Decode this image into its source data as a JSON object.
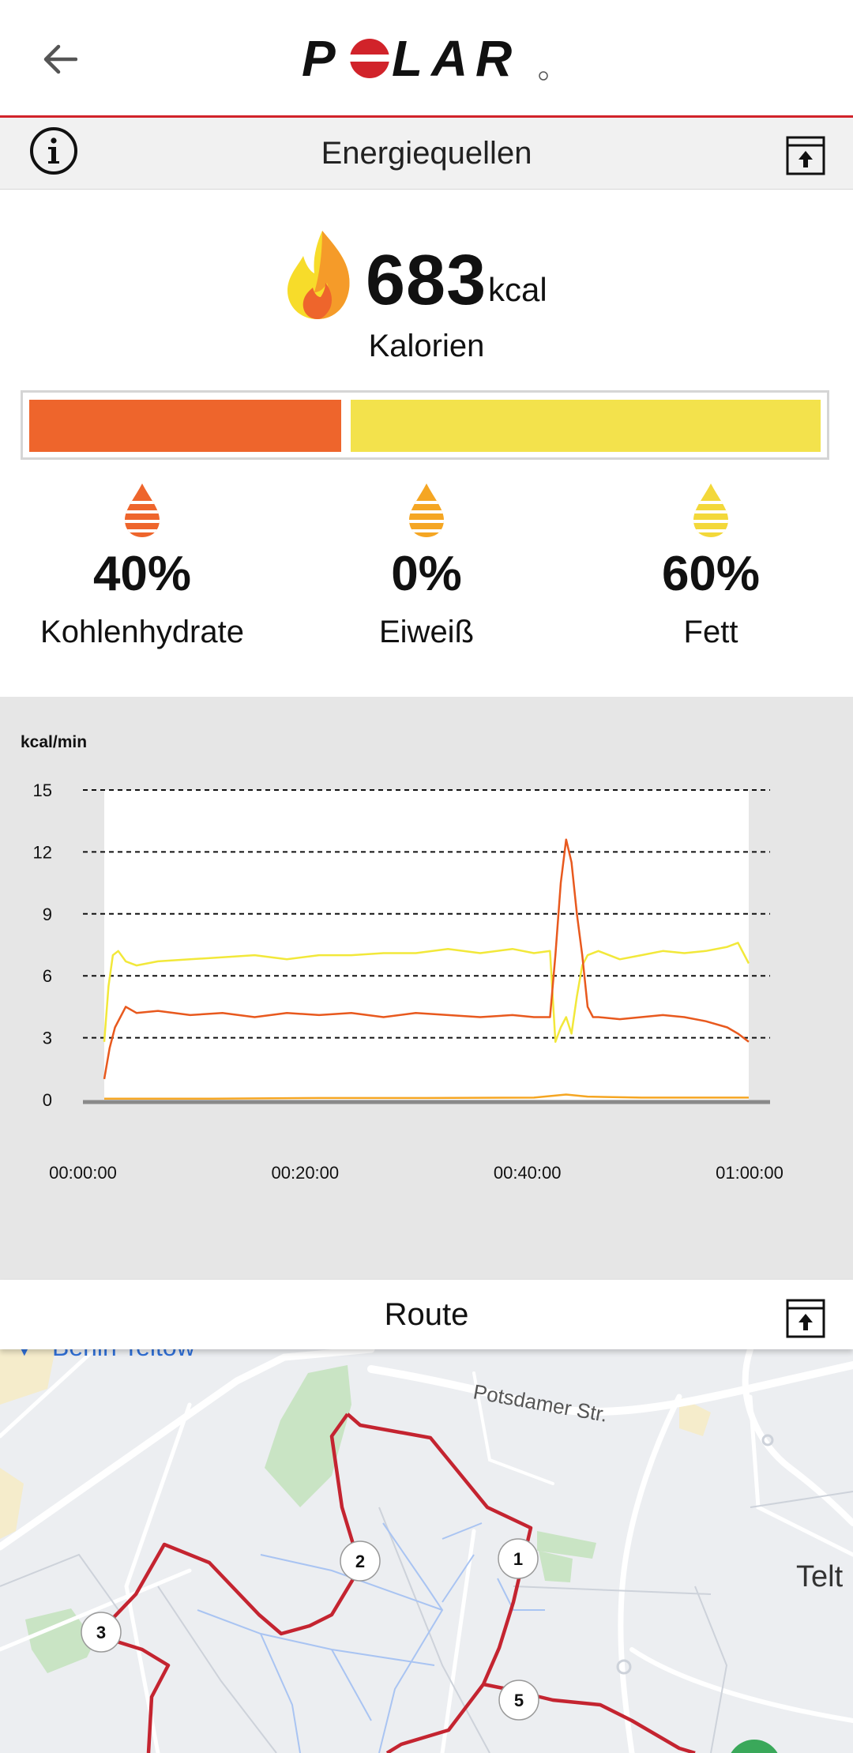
{
  "header": {
    "brand": "POLAR"
  },
  "section": {
    "title": "Energiequellen"
  },
  "calories": {
    "value": "683",
    "unit": "kcal",
    "label": "Kalorien"
  },
  "energy_bar": {
    "carbs_fraction": 0.4,
    "fat_fraction": 0.6,
    "carbs_color": "#ee652c",
    "fat_color": "#f3e24c"
  },
  "sources": [
    {
      "pct": "40%",
      "label": "Kohlenhydrate",
      "color": "#ee652c"
    },
    {
      "pct": "0%",
      "label": "Eiweiß",
      "color": "#f5a623"
    },
    {
      "pct": "60%",
      "label": "Fett",
      "color": "#f3d83a"
    }
  ],
  "chart_data": {
    "type": "line",
    "ylabel": "kcal/min",
    "ylim": [
      0,
      15
    ],
    "yticks": [
      "0",
      "3",
      "6",
      "9",
      "12",
      "15"
    ],
    "xticks": [
      "00:00:00",
      "00:20:00",
      "00:40:00",
      "01:00:00"
    ],
    "xlim_min": [
      0,
      60
    ],
    "grid": "dashed horizontal",
    "series": [
      {
        "color": "#f2e83a",
        "x": [
          0,
          0.4,
          0.8,
          1.3,
          2,
          3,
          5,
          8,
          11,
          14,
          17,
          20,
          23,
          26,
          29,
          32,
          35,
          38,
          40,
          41.5,
          42,
          42.5,
          43,
          43.5,
          44,
          44.5,
          45,
          46,
          48,
          50,
          52,
          54,
          56,
          58,
          59,
          60
        ],
        "values": [
          2.8,
          5.5,
          7.0,
          7.2,
          6.7,
          6.5,
          6.7,
          6.8,
          6.9,
          7.0,
          6.8,
          7.0,
          7.0,
          7.1,
          7.1,
          7.3,
          7.1,
          7.3,
          7.1,
          7.2,
          2.8,
          3.5,
          4.0,
          3.2,
          5.0,
          6.5,
          7.0,
          7.2,
          6.8,
          7.0,
          7.2,
          7.1,
          7.2,
          7.4,
          7.6,
          6.6
        ]
      },
      {
        "color": "#e8591e",
        "x": [
          0,
          0.5,
          1,
          1.5,
          2,
          3,
          5,
          8,
          11,
          14,
          17,
          20,
          23,
          26,
          29,
          32,
          35,
          38,
          40,
          41.5,
          42,
          42.5,
          43,
          43.5,
          44,
          44.5,
          45,
          45.5,
          46,
          48,
          50,
          52,
          54,
          56,
          58,
          59,
          60
        ],
        "values": [
          1.0,
          2.5,
          3.5,
          4.0,
          4.5,
          4.2,
          4.3,
          4.1,
          4.2,
          4.0,
          4.2,
          4.1,
          4.2,
          4.0,
          4.2,
          4.1,
          4.0,
          4.1,
          4.0,
          4.0,
          7.0,
          10.5,
          12.6,
          11.5,
          9.0,
          7.0,
          4.5,
          4.0,
          4.0,
          3.9,
          4.0,
          4.1,
          4.0,
          3.8,
          3.5,
          3.2,
          2.8
        ]
      },
      {
        "color": "#f5a623",
        "x": [
          0,
          10,
          20,
          30,
          40,
          43,
          45,
          50,
          60
        ],
        "values": [
          0.05,
          0.05,
          0.08,
          0.08,
          0.1,
          0.25,
          0.15,
          0.1,
          0.1
        ]
      }
    ]
  },
  "route": {
    "title": "Route"
  },
  "map": {
    "labels": {
      "street": "Potsdamer Str.",
      "town": "Telt",
      "place": "Berlin Teltow"
    },
    "markers": [
      "1",
      "2",
      "3",
      "5"
    ],
    "route_color": "#c42430"
  }
}
